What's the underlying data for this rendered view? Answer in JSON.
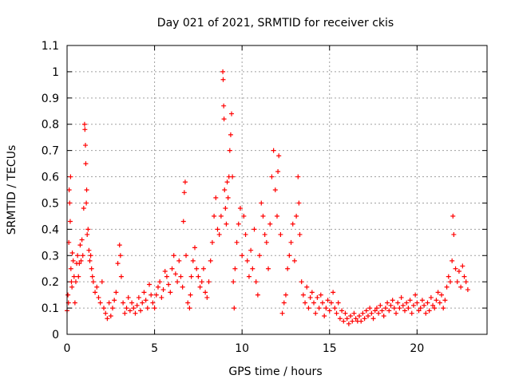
{
  "chart_data": {
    "type": "scatter",
    "title": "Day 021 of 2021, SRMTID for receiver ckis",
    "xlabel": "GPS time / hours",
    "ylabel": "SRMTID / TECUs",
    "xlim": [
      0,
      24
    ],
    "ylim": [
      0,
      1.1
    ],
    "xticks": [
      0,
      5,
      10,
      15,
      20
    ],
    "yticks": [
      0,
      0.1,
      0.2,
      0.3,
      0.4,
      0.5,
      0.6,
      0.7,
      0.8,
      0.9,
      1,
      1.1
    ],
    "xtick_labels": [
      "0",
      "5",
      "10",
      "15",
      "20"
    ],
    "ytick_labels": [
      "0",
      "0.1",
      "0.2",
      "0.3",
      "0.4",
      "0.5",
      "0.6",
      "0.7",
      "0.8",
      "0.9",
      "1",
      "1.1"
    ],
    "grid": true,
    "marker": "+",
    "color": "#ff0000",
    "series": [
      {
        "name": "SRMTID",
        "points": [
          [
            0.0,
            0.09
          ],
          [
            0.05,
            0.15
          ],
          [
            0.08,
            0.12
          ],
          [
            0.1,
            0.35
          ],
          [
            0.12,
            0.55
          ],
          [
            0.15,
            0.5
          ],
          [
            0.18,
            0.43
          ],
          [
            0.2,
            0.6
          ],
          [
            0.22,
            0.25
          ],
          [
            0.25,
            0.2
          ],
          [
            0.28,
            0.18
          ],
          [
            0.3,
            0.31
          ],
          [
            0.35,
            0.28
          ],
          [
            0.4,
            0.22
          ],
          [
            0.45,
            0.12
          ],
          [
            0.5,
            0.2
          ],
          [
            0.55,
            0.27
          ],
          [
            0.6,
            0.3
          ],
          [
            0.65,
            0.22
          ],
          [
            0.7,
            0.27
          ],
          [
            0.75,
            0.34
          ],
          [
            0.8,
            0.28
          ],
          [
            0.85,
            0.36
          ],
          [
            0.9,
            0.3
          ],
          [
            0.95,
            0.48
          ],
          [
            1.0,
            0.8
          ],
          [
            1.02,
            0.78
          ],
          [
            1.05,
            0.72
          ],
          [
            1.07,
            0.65
          ],
          [
            1.1,
            0.5
          ],
          [
            1.12,
            0.55
          ],
          [
            1.15,
            0.38
          ],
          [
            1.2,
            0.4
          ],
          [
            1.25,
            0.32
          ],
          [
            1.3,
            0.28
          ],
          [
            1.35,
            0.3
          ],
          [
            1.4,
            0.25
          ],
          [
            1.45,
            0.22
          ],
          [
            1.5,
            0.2
          ],
          [
            1.6,
            0.16
          ],
          [
            1.7,
            0.18
          ],
          [
            1.8,
            0.14
          ],
          [
            1.9,
            0.12
          ],
          [
            2.0,
            0.2
          ],
          [
            2.1,
            0.1
          ],
          [
            2.2,
            0.08
          ],
          [
            2.3,
            0.06
          ],
          [
            2.4,
            0.12
          ],
          [
            2.5,
            0.07
          ],
          [
            2.6,
            0.1
          ],
          [
            2.7,
            0.13
          ],
          [
            2.8,
            0.16
          ],
          [
            2.9,
            0.27
          ],
          [
            3.0,
            0.34
          ],
          [
            3.05,
            0.3
          ],
          [
            3.1,
            0.22
          ],
          [
            3.2,
            0.12
          ],
          [
            3.3,
            0.08
          ],
          [
            3.4,
            0.1
          ],
          [
            3.5,
            0.14
          ],
          [
            3.6,
            0.09
          ],
          [
            3.7,
            0.12
          ],
          [
            3.8,
            0.1
          ],
          [
            3.9,
            0.08
          ],
          [
            4.0,
            0.11
          ],
          [
            4.1,
            0.14
          ],
          [
            4.2,
            0.09
          ],
          [
            4.3,
            0.12
          ],
          [
            4.4,
            0.16
          ],
          [
            4.5,
            0.13
          ],
          [
            4.6,
            0.1
          ],
          [
            4.7,
            0.19
          ],
          [
            4.8,
            0.15
          ],
          [
            4.9,
            0.12
          ],
          [
            5.0,
            0.1
          ],
          [
            5.1,
            0.15
          ],
          [
            5.2,
            0.18
          ],
          [
            5.3,
            0.2
          ],
          [
            5.4,
            0.14
          ],
          [
            5.5,
            0.17
          ],
          [
            5.6,
            0.24
          ],
          [
            5.7,
            0.22
          ],
          [
            5.8,
            0.19
          ],
          [
            5.9,
            0.16
          ],
          [
            6.0,
            0.25
          ],
          [
            6.1,
            0.3
          ],
          [
            6.2,
            0.23
          ],
          [
            6.3,
            0.2
          ],
          [
            6.4,
            0.28
          ],
          [
            6.5,
            0.22
          ],
          [
            6.6,
            0.18
          ],
          [
            6.65,
            0.43
          ],
          [
            6.7,
            0.54
          ],
          [
            6.75,
            0.58
          ],
          [
            6.8,
            0.3
          ],
          [
            6.9,
            0.12
          ],
          [
            7.0,
            0.1
          ],
          [
            7.05,
            0.15
          ],
          [
            7.1,
            0.22
          ],
          [
            7.2,
            0.28
          ],
          [
            7.3,
            0.33
          ],
          [
            7.4,
            0.25
          ],
          [
            7.5,
            0.22
          ],
          [
            7.6,
            0.18
          ],
          [
            7.7,
            0.2
          ],
          [
            7.8,
            0.25
          ],
          [
            7.9,
            0.16
          ],
          [
            8.0,
            0.14
          ],
          [
            8.1,
            0.2
          ],
          [
            8.2,
            0.28
          ],
          [
            8.3,
            0.35
          ],
          [
            8.4,
            0.45
          ],
          [
            8.5,
            0.52
          ],
          [
            8.6,
            0.4
          ],
          [
            8.7,
            0.38
          ],
          [
            8.8,
            0.45
          ],
          [
            8.9,
            1.0
          ],
          [
            8.92,
            0.97
          ],
          [
            8.95,
            0.87
          ],
          [
            8.97,
            0.82
          ],
          [
            9.0,
            0.55
          ],
          [
            9.05,
            0.48
          ],
          [
            9.1,
            0.42
          ],
          [
            9.15,
            0.58
          ],
          [
            9.2,
            0.52
          ],
          [
            9.25,
            0.6
          ],
          [
            9.3,
            0.7
          ],
          [
            9.35,
            0.76
          ],
          [
            9.4,
            0.84
          ],
          [
            9.45,
            0.6
          ],
          [
            9.5,
            0.2
          ],
          [
            9.55,
            0.1
          ],
          [
            9.6,
            0.25
          ],
          [
            9.7,
            0.35
          ],
          [
            9.8,
            0.42
          ],
          [
            9.9,
            0.48
          ],
          [
            10.0,
            0.3
          ],
          [
            10.1,
            0.45
          ],
          [
            10.2,
            0.38
          ],
          [
            10.3,
            0.28
          ],
          [
            10.4,
            0.22
          ],
          [
            10.5,
            0.32
          ],
          [
            10.6,
            0.25
          ],
          [
            10.7,
            0.4
          ],
          [
            10.8,
            0.2
          ],
          [
            10.9,
            0.15
          ],
          [
            11.0,
            0.3
          ],
          [
            11.1,
            0.5
          ],
          [
            11.2,
            0.45
          ],
          [
            11.3,
            0.38
          ],
          [
            11.4,
            0.35
          ],
          [
            11.5,
            0.25
          ],
          [
            11.6,
            0.42
          ],
          [
            11.7,
            0.6
          ],
          [
            11.8,
            0.7
          ],
          [
            11.9,
            0.55
          ],
          [
            12.0,
            0.45
          ],
          [
            12.05,
            0.62
          ],
          [
            12.1,
            0.68
          ],
          [
            12.2,
            0.38
          ],
          [
            12.3,
            0.08
          ],
          [
            12.4,
            0.12
          ],
          [
            12.5,
            0.15
          ],
          [
            12.6,
            0.25
          ],
          [
            12.7,
            0.3
          ],
          [
            12.8,
            0.35
          ],
          [
            12.9,
            0.42
          ],
          [
            13.0,
            0.28
          ],
          [
            13.1,
            0.45
          ],
          [
            13.2,
            0.6
          ],
          [
            13.25,
            0.5
          ],
          [
            13.3,
            0.38
          ],
          [
            13.4,
            0.2
          ],
          [
            13.5,
            0.15
          ],
          [
            13.6,
            0.12
          ],
          [
            13.7,
            0.18
          ],
          [
            13.8,
            0.1
          ],
          [
            13.9,
            0.14
          ],
          [
            14.0,
            0.16
          ],
          [
            14.1,
            0.12
          ],
          [
            14.2,
            0.08
          ],
          [
            14.3,
            0.14
          ],
          [
            14.4,
            0.1
          ],
          [
            14.5,
            0.15
          ],
          [
            14.6,
            0.12
          ],
          [
            14.7,
            0.07
          ],
          [
            14.8,
            0.1
          ],
          [
            14.9,
            0.13
          ],
          [
            15.0,
            0.09
          ],
          [
            15.1,
            0.12
          ],
          [
            15.2,
            0.16
          ],
          [
            15.3,
            0.1
          ],
          [
            15.4,
            0.08
          ],
          [
            15.5,
            0.12
          ],
          [
            15.6,
            0.06
          ],
          [
            15.7,
            0.09
          ],
          [
            15.8,
            0.05
          ],
          [
            15.9,
            0.08
          ],
          [
            16.0,
            0.06
          ],
          [
            16.1,
            0.04
          ],
          [
            16.2,
            0.07
          ],
          [
            16.3,
            0.05
          ],
          [
            16.4,
            0.08
          ],
          [
            16.5,
            0.06
          ],
          [
            16.6,
            0.05
          ],
          [
            16.7,
            0.07
          ],
          [
            16.8,
            0.05
          ],
          [
            16.9,
            0.08
          ],
          [
            17.0,
            0.06
          ],
          [
            17.1,
            0.09
          ],
          [
            17.2,
            0.07
          ],
          [
            17.3,
            0.1
          ],
          [
            17.4,
            0.08
          ],
          [
            17.5,
            0.06
          ],
          [
            17.6,
            0.09
          ],
          [
            17.7,
            0.1
          ],
          [
            17.8,
            0.08
          ],
          [
            17.9,
            0.11
          ],
          [
            18.0,
            0.09
          ],
          [
            18.1,
            0.07
          ],
          [
            18.2,
            0.1
          ],
          [
            18.3,
            0.12
          ],
          [
            18.4,
            0.09
          ],
          [
            18.5,
            0.11
          ],
          [
            18.6,
            0.13
          ],
          [
            18.7,
            0.1
          ],
          [
            18.8,
            0.08
          ],
          [
            18.9,
            0.12
          ],
          [
            19.0,
            0.1
          ],
          [
            19.1,
            0.14
          ],
          [
            19.2,
            0.11
          ],
          [
            19.3,
            0.09
          ],
          [
            19.4,
            0.12
          ],
          [
            19.5,
            0.1
          ],
          [
            19.6,
            0.13
          ],
          [
            19.7,
            0.08
          ],
          [
            19.8,
            0.11
          ],
          [
            19.9,
            0.15
          ],
          [
            20.0,
            0.12
          ],
          [
            20.1,
            0.09
          ],
          [
            20.2,
            0.1
          ],
          [
            20.3,
            0.13
          ],
          [
            20.4,
            0.11
          ],
          [
            20.5,
            0.08
          ],
          [
            20.6,
            0.12
          ],
          [
            20.7,
            0.09
          ],
          [
            20.8,
            0.14
          ],
          [
            20.9,
            0.11
          ],
          [
            21.0,
            0.1
          ],
          [
            21.1,
            0.13
          ],
          [
            21.2,
            0.16
          ],
          [
            21.3,
            0.12
          ],
          [
            21.4,
            0.15
          ],
          [
            21.5,
            0.1
          ],
          [
            21.6,
            0.13
          ],
          [
            21.7,
            0.18
          ],
          [
            21.8,
            0.22
          ],
          [
            21.9,
            0.2
          ],
          [
            22.0,
            0.28
          ],
          [
            22.05,
            0.45
          ],
          [
            22.1,
            0.38
          ],
          [
            22.2,
            0.25
          ],
          [
            22.3,
            0.2
          ],
          [
            22.4,
            0.24
          ],
          [
            22.5,
            0.18
          ],
          [
            22.6,
            0.26
          ],
          [
            22.7,
            0.22
          ],
          [
            22.8,
            0.2
          ],
          [
            22.9,
            0.17
          ]
        ]
      }
    ]
  }
}
